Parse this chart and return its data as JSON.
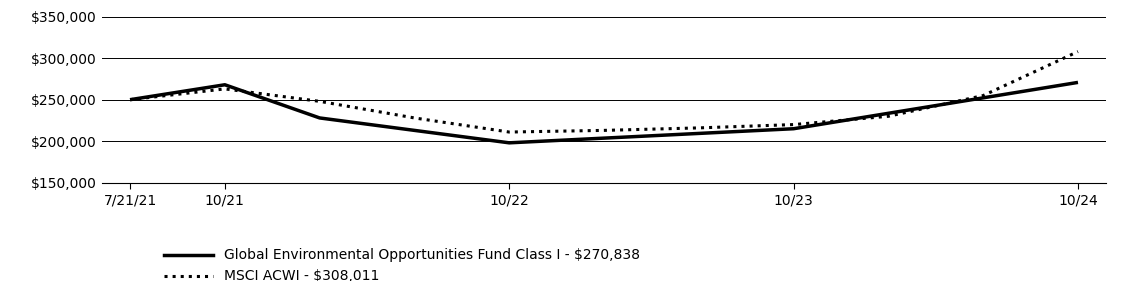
{
  "x_labels": [
    "7/21/21",
    "10/21",
    "10/22",
    "10/23",
    "10/24"
  ],
  "x_positions": [
    0,
    1,
    4,
    7,
    10
  ],
  "fund_x": [
    0,
    1,
    2,
    4,
    7,
    10
  ],
  "fund_y": [
    250000,
    268000,
    228000,
    198000,
    215000,
    270838
  ],
  "msci_x": [
    0,
    1,
    2,
    3,
    4,
    5,
    6,
    7,
    8,
    9,
    10
  ],
  "msci_y": [
    250000,
    263000,
    248000,
    228000,
    211000,
    213000,
    216000,
    220000,
    230000,
    255000,
    308011
  ],
  "fund_label": "Global Environmental Opportunities Fund Class I - $270,838",
  "msci_label": "MSCI ACWI - $308,011",
  "ylim": [
    150000,
    360000
  ],
  "yticks": [
    150000,
    200000,
    250000,
    300000,
    350000
  ],
  "fund_color": "#000000",
  "msci_color": "#000000",
  "background_color": "#ffffff",
  "grid_color": "#000000",
  "tick_label_fontsize": 10,
  "legend_fontsize": 10
}
